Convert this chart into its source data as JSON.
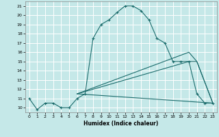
{
  "xlabel": "Humidex (Indice chaleur)",
  "bg_color": "#c5e8e8",
  "grid_color": "#ffffff",
  "line_color": "#1a6b6b",
  "xlim": [
    -0.5,
    23.5
  ],
  "ylim": [
    9.5,
    21.5
  ],
  "xticks": [
    0,
    1,
    2,
    3,
    4,
    5,
    6,
    7,
    8,
    9,
    10,
    11,
    12,
    13,
    14,
    15,
    16,
    17,
    18,
    19,
    20,
    21,
    22,
    23
  ],
  "yticks": [
    10,
    11,
    12,
    13,
    14,
    15,
    16,
    17,
    18,
    19,
    20,
    21
  ],
  "series1_x": [
    0,
    1,
    2,
    3,
    4,
    5,
    6,
    7,
    8,
    9,
    10,
    11,
    12,
    13,
    14,
    15,
    16,
    17,
    18,
    19,
    20,
    21,
    22,
    23
  ],
  "series1_y": [
    11,
    9.8,
    10.5,
    10.5,
    10.0,
    10.0,
    11.0,
    11.5,
    17.5,
    19.0,
    19.5,
    20.3,
    21.0,
    21.0,
    20.5,
    19.5,
    17.5,
    17.0,
    15.0,
    15.0,
    15.0,
    11.5,
    10.5,
    10.5
  ],
  "series2_x": [
    6,
    20,
    21,
    23
  ],
  "series2_y": [
    11.5,
    16.0,
    15.0,
    10.5
  ],
  "series3_x": [
    6,
    20,
    21,
    23
  ],
  "series3_y": [
    11.5,
    15.0,
    15.0,
    10.5
  ],
  "series4_x": [
    6,
    23
  ],
  "series4_y": [
    11.5,
    10.5
  ]
}
